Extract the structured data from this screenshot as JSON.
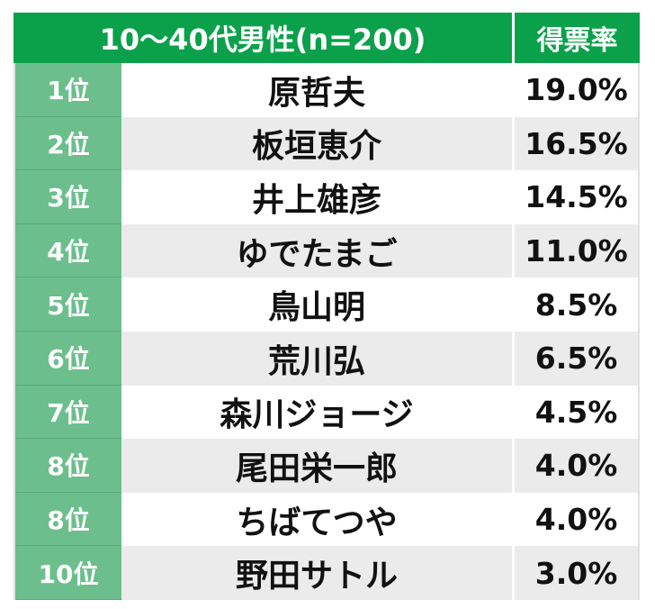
{
  "header": {
    "title": "10〜40代男性(n=200)",
    "rate_label": "得票率"
  },
  "rows": [
    {
      "rank": "1位",
      "name": "原哲夫",
      "rate": "19.0%"
    },
    {
      "rank": "2位",
      "name": "板垣恵介",
      "rate": "16.5%"
    },
    {
      "rank": "3位",
      "name": "井上雄彦",
      "rate": "14.5%"
    },
    {
      "rank": "4位",
      "name": "ゆでたまご",
      "rate": "11.0%"
    },
    {
      "rank": "5位",
      "name": "鳥山明",
      "rate": "8.5%"
    },
    {
      "rank": "6位",
      "name": "荒川弘",
      "rate": "6.5%"
    },
    {
      "rank": "7位",
      "name": "森川ジョージ",
      "rate": "4.5%"
    },
    {
      "rank": "8位",
      "name": "尾田栄一郎",
      "rate": "4.0%"
    },
    {
      "rank": "8位",
      "name": "ちばてつや",
      "rate": "4.0%"
    },
    {
      "rank": "10位",
      "name": "野田サトル",
      "rate": "3.0%"
    }
  ],
  "colors": {
    "header_green": "#0aa14a",
    "rank_green": "#6cbf8d",
    "row_grey": "#ebebeb"
  }
}
